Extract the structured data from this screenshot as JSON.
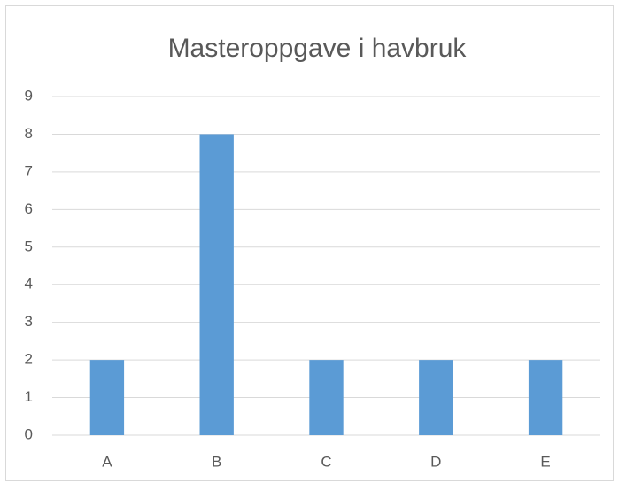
{
  "chart_data": {
    "type": "bar",
    "title": "Masteroppgave i havbruk",
    "categories": [
      "A",
      "B",
      "C",
      "D",
      "E"
    ],
    "values": [
      2,
      8,
      2,
      2,
      2
    ],
    "color": "#5b9bd5",
    "ylim": [
      0,
      9
    ],
    "yticks": [
      0,
      1,
      2,
      3,
      4,
      5,
      6,
      7,
      8,
      9
    ],
    "grid": true
  }
}
